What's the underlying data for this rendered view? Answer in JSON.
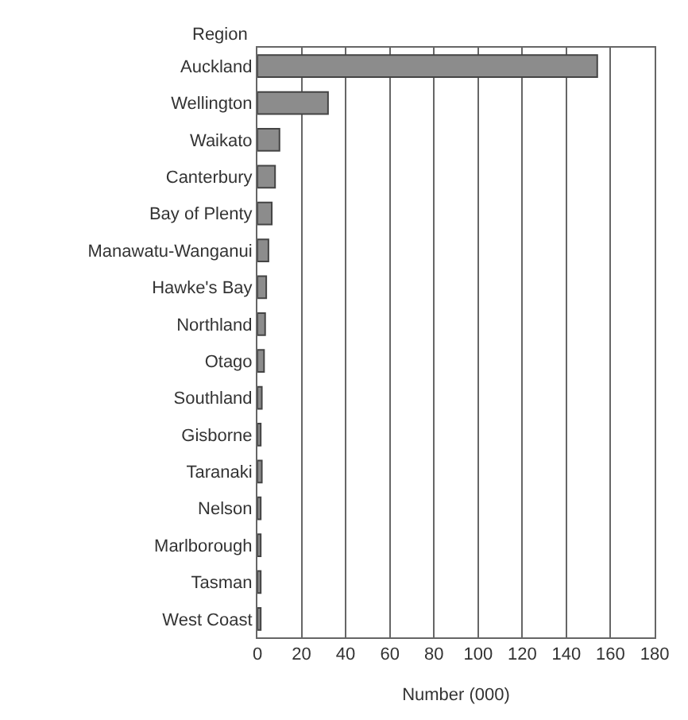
{
  "chart_data": {
    "type": "bar",
    "orientation": "horizontal",
    "ylabel": "Region",
    "xlabel": "Number (000)",
    "categories": [
      "Auckland",
      "Wellington",
      "Waikato",
      "Canterbury",
      "Bay of Plenty",
      "Manawatu-Wanganui",
      "Hawke's Bay",
      "Northland",
      "Otago",
      "Southland",
      "Gisborne",
      "Taranaki",
      "Nelson",
      "Marlborough",
      "Tasman",
      "West Coast"
    ],
    "values": [
      154,
      32,
      10,
      8,
      6.5,
      5,
      4,
      3.5,
      3,
      2,
      1.5,
      2,
      1.5,
      1.5,
      1.5,
      1.5
    ],
    "color": "#8c8c8c",
    "xlim": [
      0,
      180
    ],
    "xticks": [
      0,
      20,
      40,
      60,
      80,
      100,
      120,
      140,
      160,
      180
    ],
    "grid": "x"
  }
}
